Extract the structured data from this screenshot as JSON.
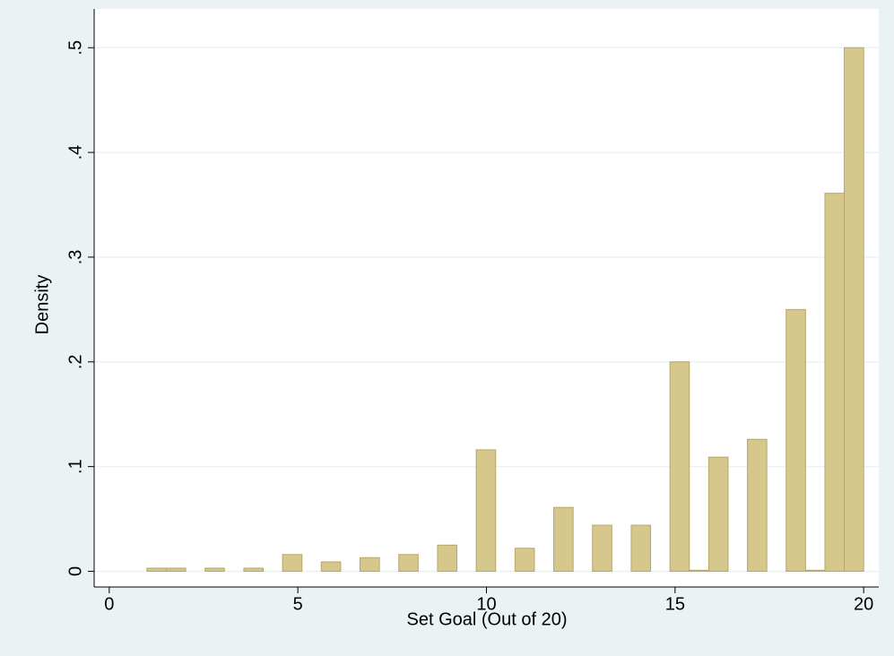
{
  "chart_data": {
    "type": "histogram",
    "x_label": "Set Goal (Out of 20)",
    "y_label": "Density",
    "bins": [
      1,
      1.514,
      2.027,
      2.541,
      3.054,
      3.568,
      4.081,
      4.595,
      5.108,
      5.622,
      6.135,
      6.649,
      7.162,
      7.676,
      8.189,
      8.703,
      9.216,
      9.73,
      10.243,
      10.757,
      11.27,
      11.784,
      12.297,
      12.811,
      13.324,
      13.838,
      14.351,
      14.865,
      15.378,
      15.892,
      16.405,
      16.919,
      17.432,
      17.946,
      18.459,
      18.973,
      19.486,
      20
    ],
    "values": [
      0.003,
      0.003,
      0,
      0.003,
      0,
      0.003,
      0,
      0.016,
      0,
      0.009,
      0,
      0.013,
      0,
      0.016,
      0,
      0.025,
      0,
      0.116,
      0,
      0.022,
      0,
      0.061,
      0,
      0.044,
      0,
      0.044,
      0,
      0.2,
      0.001,
      0.109,
      0,
      0.126,
      0,
      0.25,
      0.001,
      0.361,
      0.5
    ],
    "color": "#d6c88c",
    "edge_color": "#b5a66a",
    "xlim": [
      -0.4,
      20.4
    ],
    "xticks": [
      0,
      5,
      10,
      15,
      20
    ],
    "ylim": [
      -0.015,
      0.537
    ],
    "yticks": [
      0,
      {
        "value": 0.1,
        "label": ".1"
      },
      {
        "value": 0.2,
        "label": ".2"
      },
      {
        "value": 0.3,
        "label": ".3"
      },
      {
        "value": 0.4,
        "label": ".4"
      },
      {
        "value": 0.5,
        "label": ".5"
      }
    ],
    "grid": true
  }
}
